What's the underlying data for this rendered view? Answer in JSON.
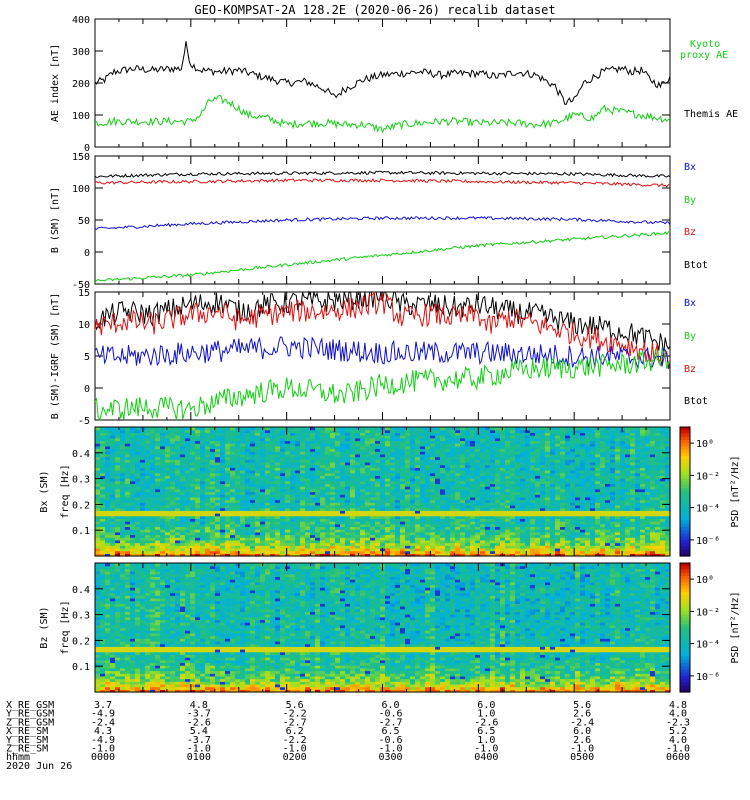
{
  "title": "GEO-KOMPSAT-2A 128.2E (2020-06-26) recalib dataset",
  "colors": {
    "black": "#000000",
    "blue": "#1010d0",
    "green": "#10d010",
    "red": "#e01010"
  },
  "chart_data": [
    {
      "type": "line",
      "ylabel": "AE index [nT]",
      "ylim": [
        0,
        400
      ],
      "yticks": [
        0,
        100,
        200,
        300,
        400
      ],
      "xlim": [
        0,
        6
      ],
      "legend": [
        "Kyoto proxy AE",
        "Themis AE"
      ],
      "series": [
        {
          "name": "Themis AE",
          "color": "#000000",
          "x": [
            0,
            0.1,
            0.2,
            0.4,
            0.6,
            0.8,
            0.9,
            0.95,
            1.0,
            1.1,
            1.3,
            1.5,
            1.8,
            2.0,
            2.2,
            2.4,
            2.5,
            2.6,
            2.8,
            3.0,
            3.2,
            3.4,
            3.6,
            3.8,
            4.0,
            4.2,
            4.4,
            4.6,
            4.8,
            4.9,
            5.0,
            5.1,
            5.3,
            5.5,
            5.6,
            5.7,
            5.8,
            5.9,
            6.0
          ],
          "y": [
            200,
            210,
            235,
            245,
            240,
            245,
            245,
            320,
            260,
            240,
            235,
            240,
            215,
            200,
            205,
            180,
            155,
            180,
            210,
            225,
            230,
            235,
            225,
            230,
            230,
            220,
            235,
            225,
            190,
            140,
            145,
            200,
            235,
            245,
            235,
            240,
            210,
            190,
            220
          ]
        },
        {
          "name": "Kyoto proxy AE",
          "color": "#10d010",
          "x": [
            0,
            0.2,
            0.5,
            0.8,
            1.0,
            1.1,
            1.2,
            1.3,
            1.4,
            1.6,
            1.8,
            2.0,
            2.2,
            2.4,
            2.6,
            2.8,
            3.0,
            3.2,
            3.4,
            3.6,
            3.8,
            4.0,
            4.2,
            4.4,
            4.6,
            4.8,
            5.0,
            5.2,
            5.3,
            5.5,
            5.7,
            5.9,
            6.0
          ],
          "y": [
            75,
            80,
            80,
            80,
            80,
            100,
            145,
            150,
            140,
            100,
            90,
            70,
            75,
            75,
            70,
            70,
            55,
            70,
            75,
            80,
            80,
            75,
            75,
            75,
            70,
            75,
            100,
            90,
            120,
            110,
            100,
            90,
            85
          ]
        }
      ]
    },
    {
      "type": "line",
      "ylabel": "B (SM) [nT]",
      "ylim": [
        -50,
        150
      ],
      "yticks": [
        -50,
        0,
        50,
        100,
        150
      ],
      "xlim": [
        0,
        6
      ],
      "legend": [
        "Bx",
        "By",
        "Bz",
        "Btot"
      ],
      "series": [
        {
          "name": "Btot",
          "color": "#000000",
          "x": [
            0,
            1,
            2,
            3,
            4,
            5,
            6
          ],
          "y": [
            118,
            122,
            123,
            124,
            123,
            122,
            118
          ]
        },
        {
          "name": "Bz",
          "color": "#e01010",
          "x": [
            0,
            1,
            2,
            3,
            4,
            5,
            6
          ],
          "y": [
            108,
            110,
            112,
            112,
            110,
            108,
            104
          ]
        },
        {
          "name": "Bx",
          "color": "#1010d0",
          "x": [
            0,
            1,
            2,
            3,
            4,
            5,
            6
          ],
          "y": [
            36,
            44,
            50,
            53,
            53,
            51,
            45
          ]
        },
        {
          "name": "By",
          "color": "#10d010",
          "x": [
            0,
            1,
            2,
            3,
            4,
            5,
            6
          ],
          "y": [
            -45,
            -36,
            -20,
            -5,
            10,
            20,
            30
          ]
        }
      ]
    },
    {
      "type": "line",
      "ylabel": "B (SM)-IGRF (SM) [nT]",
      "ylim": [
        -5,
        15
      ],
      "yticks": [
        -5,
        0,
        5,
        10,
        15
      ],
      "xlim": [
        0,
        6
      ],
      "legend": [
        "Bx",
        "By",
        "Bz",
        "Btot"
      ],
      "series": [
        {
          "name": "Btot",
          "color": "#000000",
          "x": [
            0,
            0.3,
            0.6,
            1.0,
            1.3,
            1.5,
            1.8,
            2.1,
            2.4,
            2.7,
            3.0,
            3.2,
            3.5,
            3.8,
            4.0,
            4.3,
            4.6,
            5.0,
            5.3,
            5.6,
            5.9,
            6.0
          ],
          "y": [
            10.5,
            12,
            11.5,
            13,
            13.5,
            12,
            13,
            13.5,
            13.5,
            14,
            14.5,
            13,
            13,
            12.5,
            13,
            12,
            11.5,
            10,
            9.5,
            8.5,
            7,
            6.5
          ]
        },
        {
          "name": "Bz",
          "color": "#e01010",
          "x": [
            0,
            0.3,
            0.6,
            1.0,
            1.3,
            1.5,
            1.8,
            2.1,
            2.4,
            2.7,
            3.0,
            3.2,
            3.5,
            3.8,
            4.0,
            4.1,
            4.3,
            4.6,
            5.0,
            5.3,
            5.6,
            5.9,
            6.0
          ],
          "y": [
            9.5,
            10.5,
            10,
            11.5,
            12,
            10.5,
            11.5,
            12,
            12,
            12.5,
            13.5,
            11,
            11.5,
            11,
            11.5,
            9.5,
            11,
            10,
            8.5,
            7.5,
            6.5,
            5,
            4.3
          ]
        },
        {
          "name": "Bx",
          "color": "#1010d0",
          "x": [
            0,
            0.5,
            1.0,
            1.5,
            2.0,
            2.5,
            3.0,
            3.5,
            4.0,
            4.5,
            5.0,
            5.5,
            6.0
          ],
          "y": [
            4.8,
            5,
            5.5,
            6,
            6.5,
            6,
            5.5,
            5.5,
            5.5,
            5.3,
            5,
            4.8,
            4.5
          ]
        },
        {
          "name": "By",
          "color": "#10d010",
          "x": [
            0,
            0.5,
            1.0,
            1.3,
            1.6,
            2.0,
            2.3,
            2.6,
            3.0,
            3.3,
            3.6,
            4.0,
            4.3,
            4.6,
            5.0,
            5.3,
            5.6,
            5.9,
            6.0
          ],
          "y": [
            -3.5,
            -3,
            -3.3,
            -2,
            -1,
            0,
            -0.5,
            -1.2,
            0.5,
            1,
            1.3,
            1.5,
            2.5,
            3,
            3.2,
            3.5,
            3.8,
            4.5,
            4.8
          ]
        }
      ]
    },
    {
      "type": "heatmap",
      "ylabel": "Bx (SM) freq [Hz]",
      "yticks": [
        0.1,
        0.2,
        0.3,
        0.4
      ],
      "ylim": [
        0,
        0.5
      ],
      "colorbar_label": "PSD [nT²/Hz]",
      "colorbar_ticks": [
        "10⁰",
        "10⁻²",
        "10⁻⁴",
        "10⁻⁶"
      ],
      "colorbar_exponents": [
        0,
        -2,
        -4,
        -6
      ],
      "colorbar_range": [
        -7,
        1
      ]
    },
    {
      "type": "heatmap",
      "ylabel": "Bz (SM) freq [Hz]",
      "yticks": [
        0.1,
        0.2,
        0.3,
        0.4
      ],
      "ylim": [
        0,
        0.5
      ],
      "colorbar_label": "PSD [nT²/Hz]",
      "colorbar_ticks": [
        "10⁰",
        "10⁻²",
        "10⁻⁴",
        "10⁻⁶"
      ],
      "colorbar_exponents": [
        0,
        -2,
        -4,
        -6
      ],
      "colorbar_range": [
        -7,
        1
      ]
    }
  ],
  "ephemeris": {
    "rows": [
      {
        "label": "X_RE_GSM",
        "values": [
          "3.7",
          "4.8",
          "5.6",
          "6.0",
          "6.0",
          "5.6",
          "4.8"
        ]
      },
      {
        "label": "Y_RE_GSM",
        "values": [
          "-4.9",
          "-3.7",
          "-2.2",
          "-0.6",
          "1.0",
          "2.6",
          "4.0"
        ]
      },
      {
        "label": "Z_RE_GSM",
        "values": [
          "-2.4",
          "-2.6",
          "-2.7",
          "-2.7",
          "-2.6",
          "-2.4",
          "-2.3"
        ]
      },
      {
        "label": "X_RE_SM",
        "values": [
          "4.3",
          "5.4",
          "6.2",
          "6.5",
          "6.5",
          "6.0",
          "5.2"
        ]
      },
      {
        "label": "Y_RE_SM",
        "values": [
          "-4.9",
          "-3.7",
          "-2.2",
          "-0.6",
          "1.0",
          "2.6",
          "4.0"
        ]
      },
      {
        "label": "Z_RE_SM",
        "values": [
          "-1.0",
          "-1.0",
          "-1.0",
          "-1.0",
          "-1.0",
          "-1.0",
          "-1.0"
        ]
      },
      {
        "label": "hhmm",
        "values": [
          "0000",
          "0100",
          "0200",
          "0300",
          "0400",
          "0500",
          "0600"
        ]
      }
    ],
    "date": "2020 Jun 26"
  }
}
